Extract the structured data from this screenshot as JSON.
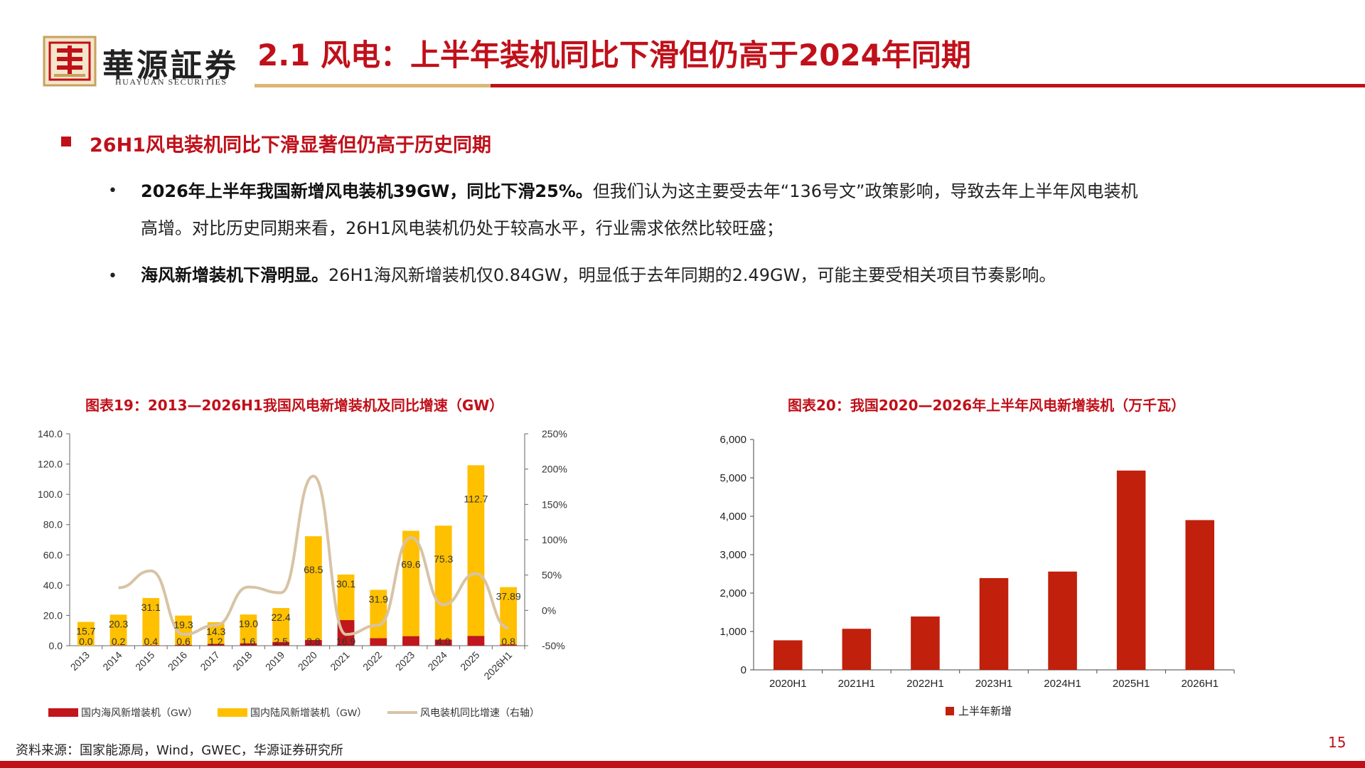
{
  "header": {
    "logo_cn": "華源証券",
    "logo_en": "HUAYUAN SECURITIES",
    "title": "2.1 风电：上半年装机同比下滑但仍高于2024年同期"
  },
  "section": {
    "title": "26H1风电装机同比下滑显著但仍高于历史同期",
    "bullets": [
      {
        "bold": "2026年上半年我国新增风电装机39GW，同比下滑25%。",
        "text": "但我们认为这主要受去年“136号文”政策影响，导致去年上半年风电装机",
        "text2": "高增。对比历史同期来看，26H1风电装机仍处于较高水平，行业需求依然比较旺盛；"
      },
      {
        "bold": "海风新增装机下滑明显。",
        "text": "26H1海风新增装机仅0.84GW，明显低于去年同期的2.49GW，可能主要受相关项目节奏影响。"
      }
    ]
  },
  "chart1": {
    "title": "图表19：2013—2026H1我国风电新增装机及同比增速（GW）",
    "legend": [
      "国内海风新增装机（GW）",
      "国内陆风新增装机（GW）",
      "风电装机同比增速（右轴）"
    ]
  },
  "chart2": {
    "title": "图表20：我国2020—2026年上半年风电新增装机（万千瓦）",
    "legend": [
      "上半年新增"
    ]
  },
  "chart_data": [
    {
      "type": "bar",
      "stacked": true,
      "categories": [
        "2013",
        "2014",
        "2015",
        "2016",
        "2017",
        "2018",
        "2019",
        "2020",
        "2021",
        "2022",
        "2023",
        "2024",
        "2025",
        "2026H1"
      ],
      "series": [
        {
          "name": "国内海风新增装机（GW）",
          "values": [
            0.0,
            0.2,
            0.4,
            0.6,
            1.2,
            1.6,
            2.5,
            3.8,
            16.9,
            5.0,
            6.3,
            4.0,
            6.5,
            0.8
          ],
          "labels": [
            "0.0",
            "0.2",
            "0.4",
            "0.6",
            "1.2",
            "1.6",
            "2.5",
            "3.8",
            "16.9",
            "",
            "",
            "4.0",
            "",
            "0.8"
          ],
          "color": "#c0161c"
        },
        {
          "name": "国内陆风新增装机（GW）",
          "values": [
            15.7,
            20.3,
            31.1,
            19.3,
            14.3,
            19.0,
            22.4,
            68.5,
            30.1,
            31.9,
            69.6,
            75.3,
            112.7,
            37.89
          ],
          "labels": [
            "15.7",
            "20.3",
            "31.1",
            "19.3",
            "14.3",
            "19.0",
            "22.4",
            "68.5",
            "30.1",
            "31.9",
            "69.6",
            "75.3",
            "112.7",
            "37.89"
          ],
          "color": "#ffc000"
        },
        {
          "name": "风电装机同比增速（右轴）",
          "axis": "right",
          "values": [
            null,
            32,
            56,
            -34,
            -21,
            33,
            25,
            190,
            -34,
            -21,
            103,
            8,
            52,
            -25
          ],
          "color": "#d8c3a5"
        }
      ],
      "ylim": [
        0,
        140
      ],
      "yticks": [
        "0.0",
        "20.0",
        "40.0",
        "60.0",
        "80.0",
        "100.0",
        "120.0",
        "140.0"
      ],
      "y2lim": [
        -50,
        250
      ],
      "y2ticks": [
        "-50%",
        "0%",
        "50%",
        "100%",
        "150%",
        "200%",
        "250%"
      ],
      "legend_position": "bottom"
    },
    {
      "type": "bar",
      "categories": [
        "2020H1",
        "2021H1",
        "2022H1",
        "2023H1",
        "2024H1",
        "2025H1",
        "2026H1"
      ],
      "series": [
        {
          "name": "上半年新增",
          "values": [
            770,
            1070,
            1390,
            2390,
            2560,
            5190,
            3900
          ],
          "color": "#c0200c"
        }
      ],
      "ylim": [
        0,
        6000
      ],
      "yticks": [
        "0",
        "1,000",
        "2,000",
        "3,000",
        "4,000",
        "5,000",
        "6,000"
      ],
      "legend_position": "bottom"
    }
  ],
  "footer": {
    "source": "资料来源：国家能源局，Wind，GWEC，华源证券研究所",
    "page": "15"
  }
}
